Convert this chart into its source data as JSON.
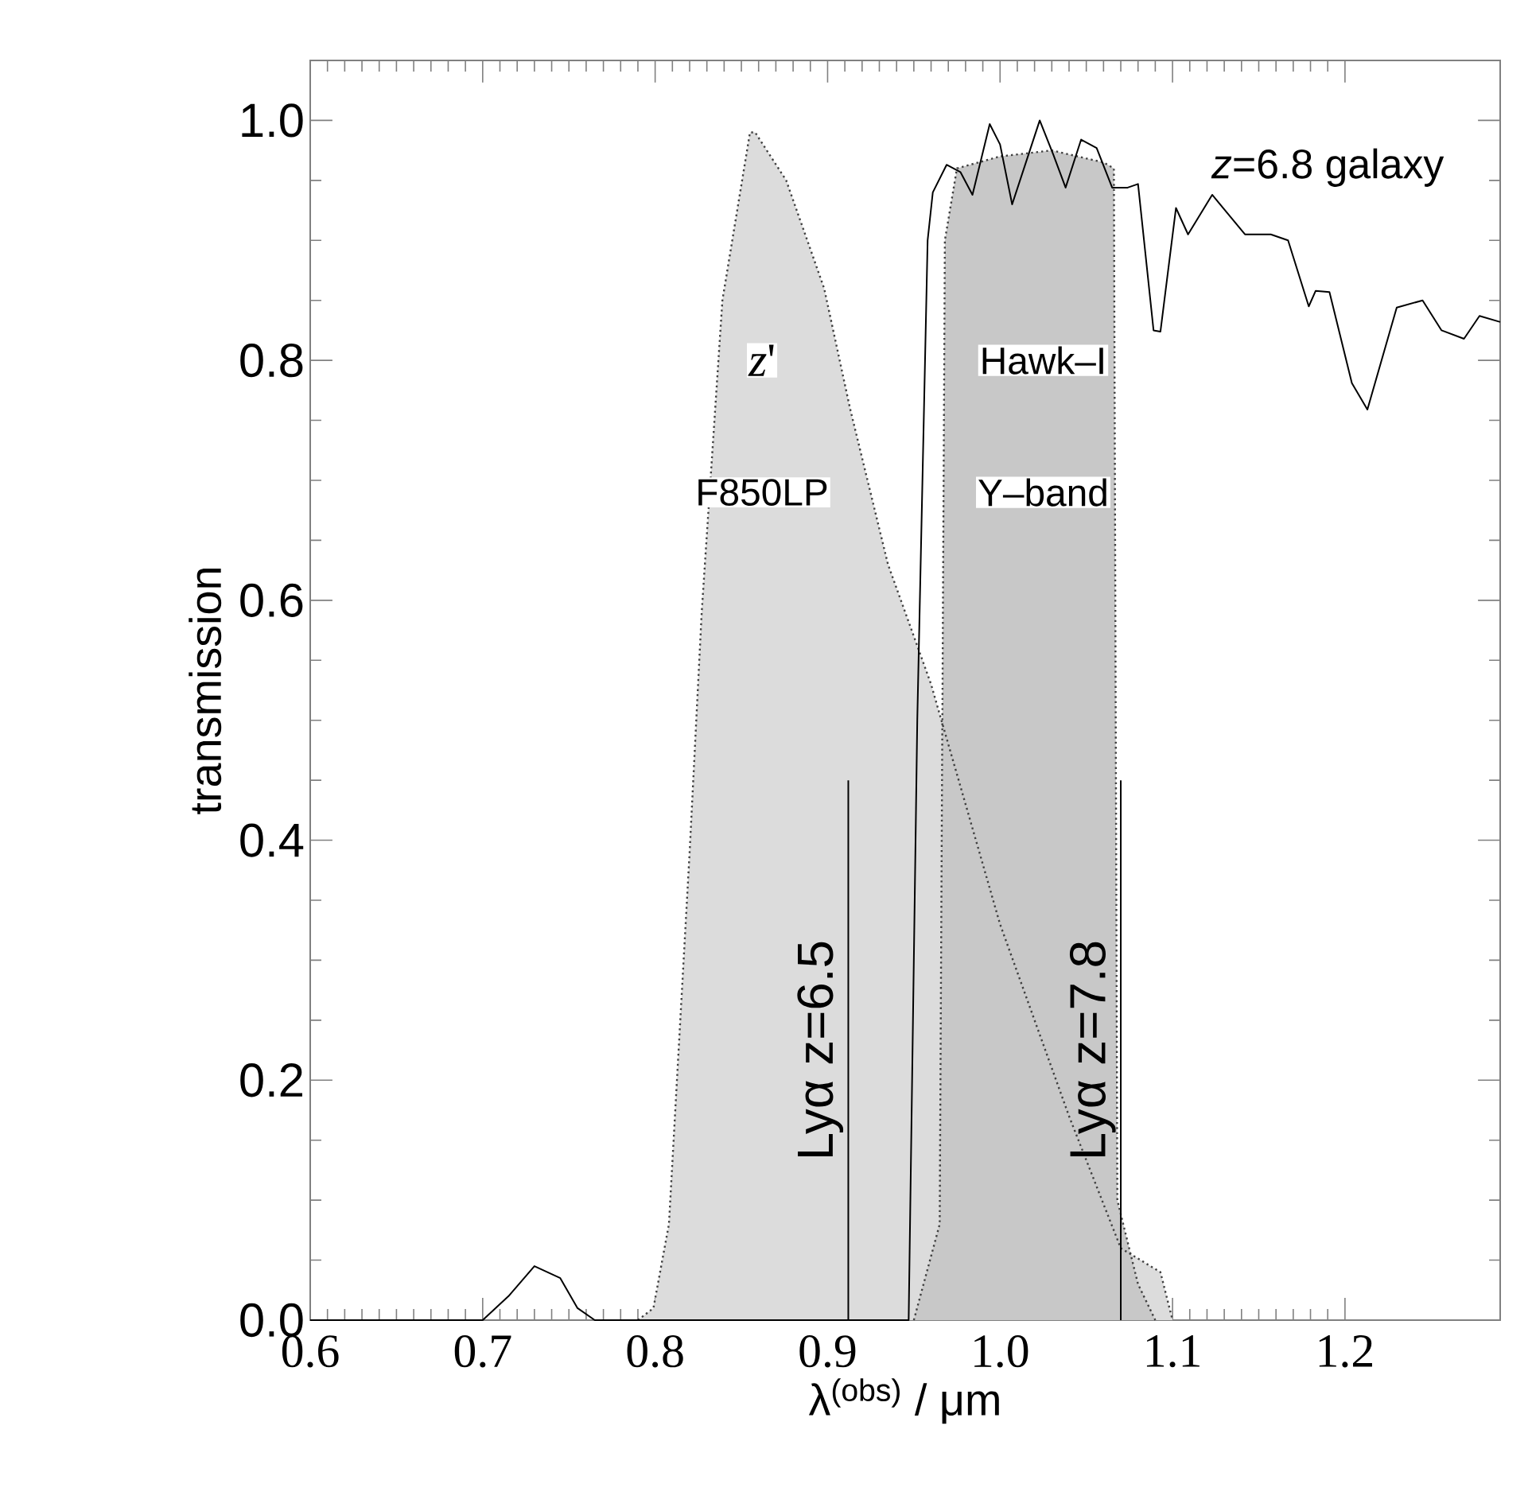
{
  "chart_data": {
    "type": "line",
    "xlabel": "λ$^{(obs)}$ / μm",
    "ylabel": "transmission",
    "xlim": [
      0.6,
      1.29
    ],
    "ylim": [
      0,
      1.05
    ],
    "xticks": [
      0.6,
      0.7,
      0.8,
      0.9,
      {
        "value": 1,
        "label": "1.0"
      },
      1.1,
      1.2
    ],
    "yticks": [
      {
        "value": 0,
        "label": "0.0"
      },
      0.2,
      0.4,
      0.6,
      0.8,
      {
        "value": 1,
        "label": "1.0"
      }
    ],
    "series": [
      {
        "type": "area",
        "color": "#dcdcdc",
        "line_style": "dotted",
        "x": [
          0.79,
          0.799,
          0.808,
          0.82,
          0.827,
          0.839,
          0.855,
          0.858,
          0.876,
          0.898,
          0.913,
          0.935,
          0.96,
          1.0,
          1.04,
          1.07,
          1.093,
          1.1
        ],
        "values": [
          0,
          0.01,
          0.08,
          0.39,
          0.59,
          0.85,
          0.99,
          0.99,
          0.95,
          0.86,
          0.76,
          0.63,
          0.53,
          0.33,
          0.17,
          0.06,
          0.04,
          0
        ]
      },
      {
        "type": "area",
        "color": "#c8c8c8",
        "line_style": "dotted",
        "x": [
          0.95,
          0.965,
          0.968,
          0.975,
          1.0,
          1.03,
          1.06,
          1.066,
          1.068,
          1.08,
          1.09
        ],
        "values": [
          0,
          0.08,
          0.9,
          0.96,
          0.97,
          0.975,
          0.965,
          0.96,
          0.1,
          0.03,
          0
        ]
      },
      {
        "name": "*z*=6.8 galaxy",
        "color": "#000000",
        "line_style": "solid",
        "x": [
          0.6,
          0.7,
          0.715,
          0.73,
          0.745,
          0.755,
          0.765,
          0.947,
          0.952,
          0.958,
          0.961,
          0.969,
          0.977,
          0.984,
          0.994,
          1.0,
          1.007,
          1.023,
          1.031,
          1.038,
          1.047,
          1.056,
          1.065,
          1.074,
          1.08,
          1.089,
          1.093,
          1.102,
          1.109,
          1.123,
          1.142,
          1.157,
          1.167,
          1.179,
          1.183,
          1.191,
          1.204,
          1.213,
          1.23,
          1.245,
          1.256,
          1.269,
          1.278,
          1.29
        ],
        "values": [
          0,
          0,
          0.02,
          0.045,
          0.035,
          0.01,
          0,
          0,
          0.5,
          0.9,
          0.94,
          0.963,
          0.957,
          0.938,
          0.997,
          0.98,
          0.93,
          1.0,
          0.971,
          0.944,
          0.984,
          0.977,
          0.944,
          0.944,
          0.947,
          0.825,
          0.824,
          0.927,
          0.905,
          0.938,
          0.905,
          0.905,
          0.9,
          0.845,
          0.858,
          0.857,
          0.781,
          0.759,
          0.844,
          0.85,
          0.825,
          0.818,
          0.837,
          0.832
        ]
      }
    ],
    "ref_lines": [
      {
        "axis": "x",
        "value": 0.912,
        "color": "#000000"
      },
      {
        "axis": "x",
        "value": 1.07,
        "color": "#000000"
      }
    ],
    "annotations": [
      "*z*'",
      "F850LP",
      "Hawk–I",
      "Y–band",
      "Lyα z=6.5",
      "Lyα z=7.8"
    ]
  }
}
